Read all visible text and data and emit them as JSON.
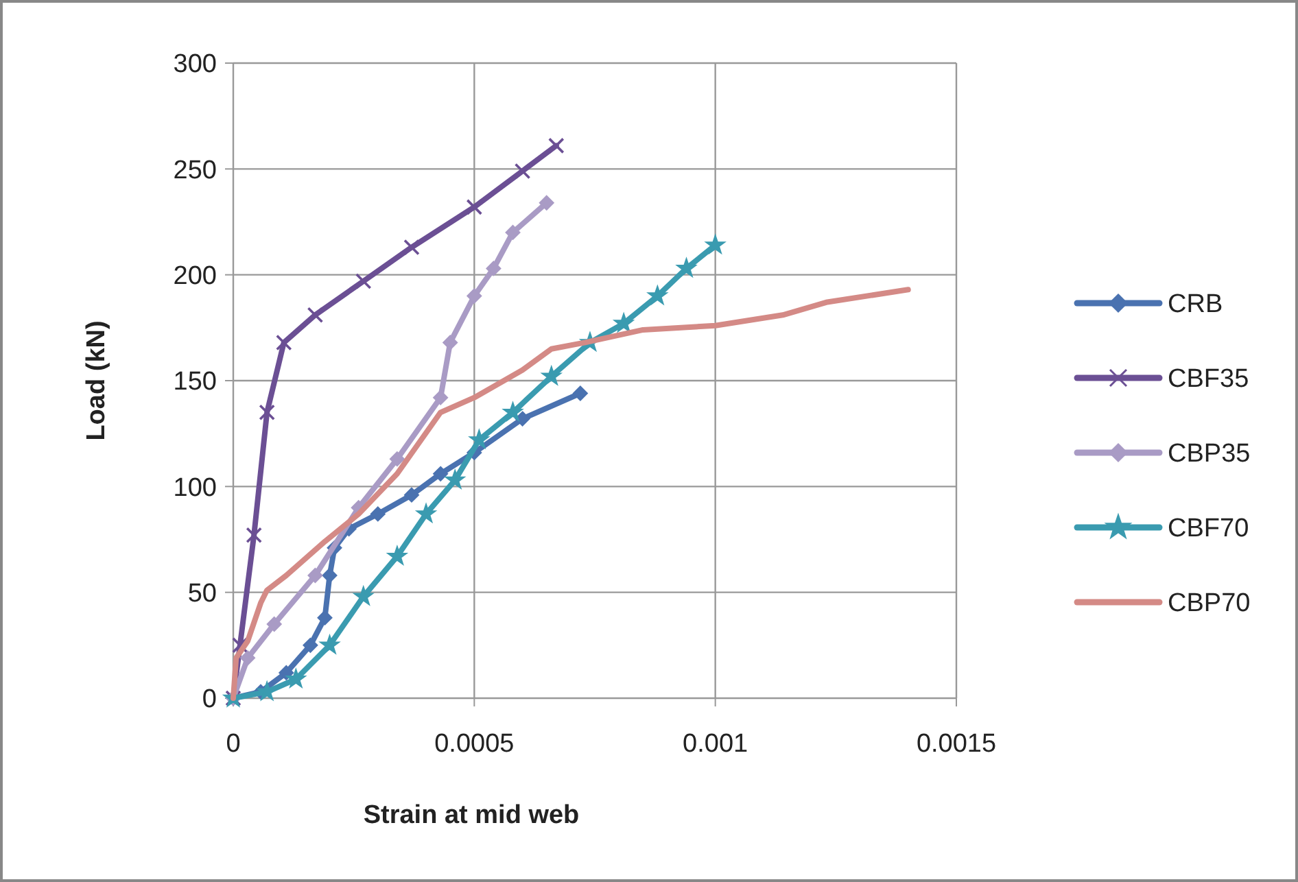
{
  "chart_data": {
    "type": "line",
    "xlabel": "Strain at mid web",
    "ylabel": "Load (kN)",
    "xlim": [
      0,
      0.0015
    ],
    "xticks": [
      0,
      0.0005,
      0.001,
      0.0015
    ],
    "ylim": [
      0,
      300
    ],
    "yticks": [
      0,
      50,
      100,
      150,
      200,
      250,
      300
    ],
    "grid": true,
    "legend": "right",
    "series": [
      {
        "name": "CRB",
        "color": "#4a72b0",
        "marker": "diamond",
        "x": [
          0,
          5.7e-05,
          0.00011,
          0.00016,
          0.00019,
          0.0002,
          0.00021,
          0.00024,
          0.0003,
          0.00037,
          0.00043,
          0.0005,
          0.0006,
          0.00072
        ],
        "values": [
          0,
          3,
          12,
          25,
          38,
          58,
          71,
          80,
          87,
          96,
          106,
          116,
          132,
          144
        ]
      },
      {
        "name": "CBF35",
        "color": "#6b4f94",
        "marker": "cross",
        "x": [
          0,
          1.4e-05,
          4.3e-05,
          7e-05,
          0.000105,
          0.00017,
          0.00027,
          0.00037,
          0.0005,
          0.0006,
          0.00067
        ],
        "values": [
          0,
          25,
          77,
          135,
          168,
          181,
          197,
          213,
          232,
          249,
          261
        ]
      },
      {
        "name": "CBP35",
        "color": "#a99bc5",
        "marker": "diamond",
        "x": [
          0,
          3e-05,
          8.5e-05,
          0.00017,
          0.00026,
          0.00034,
          0.00043,
          0.00045,
          0.0005,
          0.00054,
          0.00058,
          0.00065
        ],
        "values": [
          0,
          19,
          35,
          58,
          90,
          113,
          142,
          168,
          190,
          203,
          220,
          234
        ]
      },
      {
        "name": "CBF70",
        "color": "#3a9bb0",
        "marker": "star",
        "x": [
          0,
          7e-05,
          0.00013,
          0.0002,
          0.00027,
          0.00034,
          0.0004,
          0.00046,
          0.00051,
          0.00058,
          0.00066,
          0.00074,
          0.00081,
          0.00088,
          0.00094,
          0.001
        ],
        "values": [
          0,
          3,
          9,
          25,
          48,
          67,
          87,
          103,
          122,
          135,
          152,
          168,
          177,
          190,
          203,
          214
        ]
      },
      {
        "name": "CBP70",
        "color": "#d48a86",
        "marker": "none",
        "x": [
          0,
          6e-06,
          3e-05,
          5.7e-05,
          7e-05,
          0.00011,
          0.00019,
          0.00026,
          0.00034,
          0.00043,
          0.0005,
          0.0006,
          0.00066,
          0.00073,
          0.00085,
          0.001,
          0.00114,
          0.00123,
          0.0014
        ],
        "values": [
          0,
          19,
          27,
          45,
          51,
          58,
          74,
          87,
          106,
          135,
          142,
          155,
          165,
          168,
          174,
          176,
          181,
          187,
          193
        ]
      }
    ]
  }
}
